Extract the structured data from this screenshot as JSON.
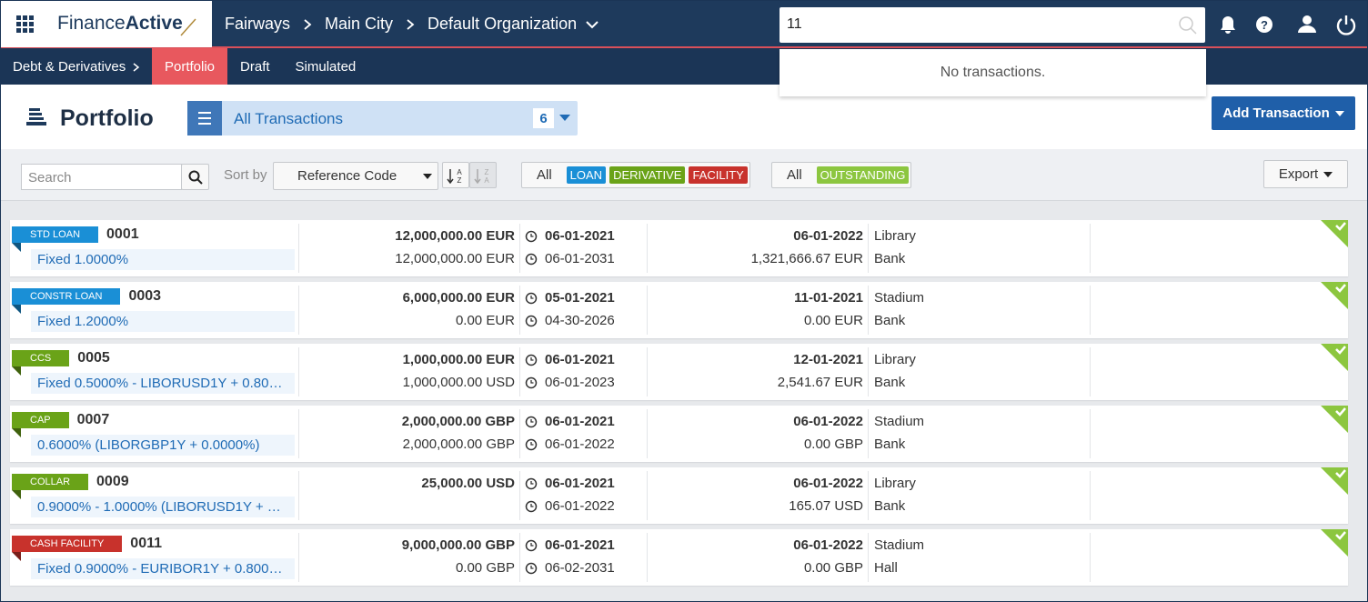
{
  "header": {
    "brand_plain": "Finance",
    "brand_bold": "Active",
    "breadcrumb": [
      "Fairways",
      "Main City",
      "Default Organization"
    ],
    "search_query": "11",
    "search_result": "No transactions."
  },
  "nav": {
    "section": "Debt & Derivatives",
    "tabs": [
      "Portfolio",
      "Draft",
      "Simulated"
    ]
  },
  "page": {
    "title": "Portfolio",
    "view": "All Transactions",
    "count": 6,
    "add_button": "Add Transaction"
  },
  "toolbar": {
    "search_placeholder": "Search",
    "sort_label": "Sort by",
    "sort_field": "Reference Code",
    "type_filters": [
      {
        "label": "All",
        "color": null
      },
      {
        "label": "LOAN",
        "color": "#1a8fd6"
      },
      {
        "label": "DERIVATIVE",
        "color": "#6aa318"
      },
      {
        "label": "FACILITY",
        "color": "#c8322c"
      }
    ],
    "status_filters": [
      {
        "label": "All",
        "color": null
      },
      {
        "label": "OUTSTANDING",
        "color": "#8cc63f"
      }
    ],
    "export": "Export"
  },
  "transactions": [
    {
      "tag": "STD LOAN",
      "tag_color": "#1a8fd6",
      "ref": "0001",
      "rate": "Fixed 1.0000%",
      "amount": "12,000,000.00 EUR",
      "amount_2": "12,000,000.00 EUR",
      "start": "06-01-2021",
      "maturity": "06-01-2031",
      "next_date": "06-01-2022",
      "next_amount": "1,321,666.67 EUR",
      "place": "Library",
      "counterparty": "Bank"
    },
    {
      "tag": "CONSTR LOAN",
      "tag_color": "#1a8fd6",
      "ref": "0003",
      "rate": "Fixed 1.2000%",
      "amount": "6,000,000.00 EUR",
      "amount_2": "0.00 EUR",
      "start": "05-01-2021",
      "maturity": "04-30-2026",
      "next_date": "11-01-2021",
      "next_amount": "0.00 EUR",
      "place": "Stadium",
      "counterparty": "Bank"
    },
    {
      "tag": "CCS",
      "tag_color": "#6aa318",
      "ref": "0005",
      "rate": "Fixed 0.5000% - LIBORUSD1Y + 0.80…",
      "amount": "1,000,000.00 EUR",
      "amount_2": "1,000,000.00 USD",
      "start": "06-01-2021",
      "maturity": "06-01-2023",
      "next_date": "12-01-2021",
      "next_amount": "2,541.67 EUR",
      "place": "Library",
      "counterparty": "Bank"
    },
    {
      "tag": "CAP",
      "tag_color": "#6aa318",
      "ref": "0007",
      "rate": "0.6000% (LIBORGBP1Y + 0.0000%)",
      "amount": "2,000,000.00 GBP",
      "amount_2": "2,000,000.00 GBP",
      "start": "06-01-2021",
      "maturity": "06-01-2022",
      "next_date": "06-01-2022",
      "next_amount": "0.00 GBP",
      "place": "Stadium",
      "counterparty": "Bank"
    },
    {
      "tag": "COLLAR",
      "tag_color": "#6aa318",
      "ref": "0009",
      "rate": "0.9000% - 1.0000% (LIBORUSD1Y + …",
      "amount": "25,000.00 USD",
      "amount_2": null,
      "start": "06-01-2021",
      "maturity": "06-01-2022",
      "next_date": "06-01-2022",
      "next_amount": "165.07 USD",
      "place": "Library",
      "counterparty": "Bank"
    },
    {
      "tag": "CASH FACILITY",
      "tag_color": "#c8322c",
      "ref": "0011",
      "rate": "Fixed 0.9000% - EURIBOR1Y + 0.800…",
      "amount": "9,000,000.00 GBP",
      "amount_2": "0.00 GBP",
      "start": "06-01-2021",
      "maturity": "06-02-2031",
      "next_date": "06-01-2022",
      "next_amount": "0.00 GBP",
      "place": "Stadium",
      "counterparty": "Hall"
    }
  ]
}
